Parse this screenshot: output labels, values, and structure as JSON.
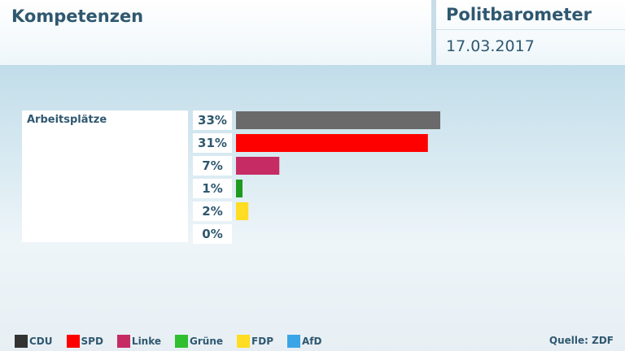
{
  "header": {
    "title": "Kompetenzen",
    "brand": "Politbarometer",
    "date": "17.03.2017"
  },
  "source": "Quelle: ZDF",
  "chart_data": {
    "type": "bar",
    "orientation": "horizontal",
    "title": "Arbeitsplätze",
    "categories": [
      "CDU",
      "SPD",
      "Linke",
      "Grüne",
      "FDP",
      "AfD"
    ],
    "values": [
      33,
      31,
      7,
      1,
      2,
      0
    ],
    "value_labels": [
      "33%",
      "31%",
      "7%",
      "1%",
      "2%",
      "0%"
    ],
    "colors": [
      "#6a6a6a",
      "#ff0000",
      "#c72b64",
      "#1f9a1f",
      "#ffdd22",
      "#3aa5e6"
    ],
    "xlim": [
      0,
      33
    ],
    "grid": false,
    "legend_position": "bottom-left"
  },
  "legend": [
    {
      "label": "CDU",
      "color": "#333333"
    },
    {
      "label": "SPD",
      "color": "#ff0000"
    },
    {
      "label": "Linke",
      "color": "#c72b64"
    },
    {
      "label": "Grüne",
      "color": "#2fbf2f"
    },
    {
      "label": "FDP",
      "color": "#ffdd22"
    },
    {
      "label": "AfD",
      "color": "#3aa5e6"
    }
  ]
}
